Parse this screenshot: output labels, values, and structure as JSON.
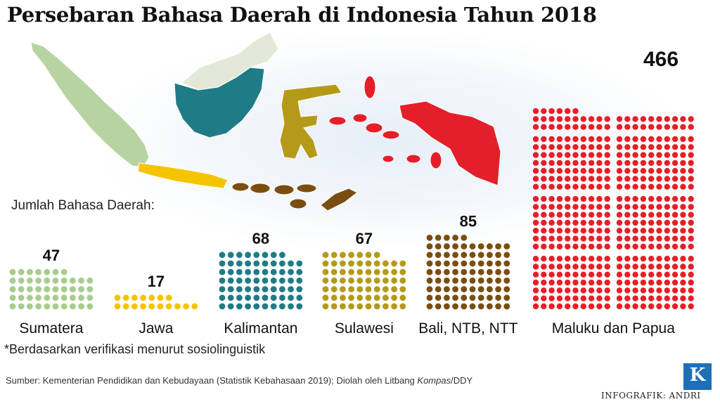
{
  "title": "Persebaran Bahasa Daerah di Indonesia Tahun 2018",
  "subtitle": "Jumlah Bahasa Daerah:",
  "footnote": "*Berdasarkan verifikasi menurut sosiolinguistik",
  "source_prefix": "Sumber: Kementerian Pendidikan dan Kebudayaan (Statistik Kebahasaan 2019); Diolah oleh Litbang ",
  "source_italic": "Kompas",
  "source_suffix": "/DDY",
  "credit": "INFOGRAFIK: ANDRI",
  "logo_letter": "K",
  "chart_data": {
    "type": "bar",
    "categories": [
      "Sumatera",
      "Jawa",
      "Kalimantan",
      "Sulawesi",
      "Bali, NTB, NTT",
      "Maluku dan Papua"
    ],
    "values": [
      47,
      17,
      68,
      67,
      85,
      466
    ],
    "colors": [
      "#a8cc8c",
      "#f5c400",
      "#1f7b86",
      "#b59a1a",
      "#7a4e10",
      "#e3202a"
    ]
  }
}
